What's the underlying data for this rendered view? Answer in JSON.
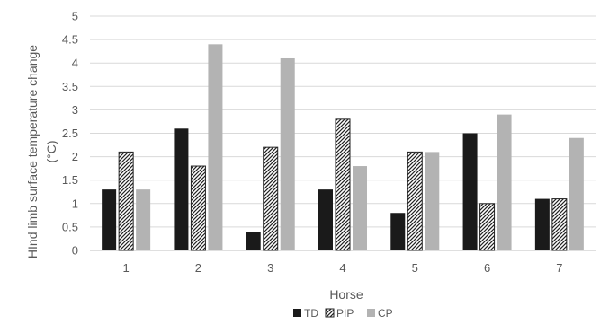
{
  "chart_data": {
    "type": "bar",
    "title": "",
    "xlabel": "Horse",
    "ylabel_line1": "HInd limb surface temperature change",
    "ylabel_line2": "(°C)",
    "categories": [
      "1",
      "2",
      "3",
      "4",
      "5",
      "6",
      "7"
    ],
    "ylim": [
      0,
      5
    ],
    "yticks": [
      "0",
      "0.5",
      "1",
      "1.5",
      "2",
      "2.5",
      "3",
      "3.5",
      "4",
      "4.5",
      "5"
    ],
    "grid": true,
    "legend_position": "bottom",
    "series": [
      {
        "name": "TD",
        "values": [
          1.3,
          2.6,
          0.4,
          1.3,
          0.8,
          2.5,
          1.1
        ],
        "color": "#1a1a1a",
        "pattern": "solid"
      },
      {
        "name": "PIP",
        "values": [
          2.1,
          1.8,
          2.2,
          2.8,
          2.1,
          1.0,
          1.1
        ],
        "color": "#3a3a3a",
        "pattern": "diagonal-hatch"
      },
      {
        "name": "CP",
        "values": [
          1.3,
          4.4,
          4.1,
          1.8,
          2.1,
          2.9,
          2.4
        ],
        "color": "#b3b3b3",
        "pattern": "solid"
      }
    ]
  }
}
